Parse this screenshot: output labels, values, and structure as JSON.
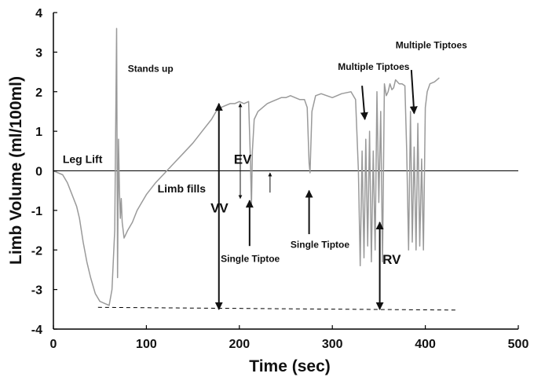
{
  "chart_data": {
    "type": "line",
    "title": "",
    "xlabel": "Time (sec)",
    "ylabel": "Limb Volume (ml/100ml)",
    "xlim": [
      0,
      500
    ],
    "ylim": [
      -4,
      4
    ],
    "xticks": [
      0,
      100,
      200,
      300,
      400,
      500
    ],
    "yticks": [
      -4,
      -3,
      -2,
      -1,
      0,
      1,
      2,
      3,
      4
    ],
    "grid": false,
    "legend": "none",
    "colors": {
      "trace": "#9a9a9a",
      "axis": "#000000",
      "annotation": "#111111"
    },
    "reference_line": {
      "y": 0
    },
    "baseline": {
      "x": [
        48,
        435
      ],
      "y": [
        -3.45,
        -3.52
      ],
      "style": "dashed"
    },
    "series": [
      {
        "style": "solid",
        "x": [
          0,
          10,
          15,
          20,
          25,
          28,
          32,
          36,
          40,
          45,
          50,
          55,
          60,
          63,
          66,
          68,
          69,
          70,
          71,
          72,
          73,
          74,
          76,
          80,
          85,
          90,
          95,
          100,
          110,
          120,
          130,
          140,
          150,
          160,
          170,
          175,
          180,
          185,
          190,
          195,
          200,
          205,
          210,
          212,
          213,
          214,
          216,
          220,
          225,
          230,
          235,
          240,
          245,
          250,
          255,
          260,
          265,
          270,
          273,
          275,
          276,
          278,
          282,
          288,
          300,
          310,
          320,
          325,
          328,
          330,
          332,
          334,
          336,
          338,
          340,
          342,
          344,
          346,
          348,
          350,
          352,
          354,
          356,
          358,
          360,
          362,
          364,
          366,
          368,
          370,
          372,
          375,
          378,
          380,
          382,
          384,
          386,
          388,
          390,
          392,
          394,
          396,
          398,
          400,
          402,
          405,
          410,
          415
        ],
        "y": [
          0,
          -0.1,
          -0.3,
          -0.6,
          -0.9,
          -1.2,
          -1.8,
          -2.3,
          -2.7,
          -3.1,
          -3.3,
          -3.35,
          -3.4,
          -3.0,
          -1.5,
          3.6,
          -2.7,
          0.8,
          -0.5,
          -1.2,
          -0.7,
          -1.3,
          -1.7,
          -1.5,
          -1.3,
          -1.0,
          -0.8,
          -0.6,
          -0.3,
          -0.05,
          0.2,
          0.45,
          0.7,
          1.0,
          1.3,
          1.5,
          1.6,
          1.65,
          1.7,
          1.7,
          1.75,
          1.7,
          1.75,
          0.2,
          -0.9,
          0.5,
          1.3,
          1.5,
          1.6,
          1.7,
          1.75,
          1.8,
          1.85,
          1.85,
          1.9,
          1.85,
          1.8,
          1.8,
          1.6,
          0.2,
          -0.05,
          1.5,
          1.9,
          1.95,
          1.85,
          1.95,
          2.0,
          1.8,
          0.0,
          -2.4,
          0.5,
          -2.2,
          0.8,
          -1.9,
          1.0,
          -2.3,
          0.5,
          -2.0,
          2.0,
          -0.8,
          1.5,
          -2.3,
          2.2,
          1.9,
          2.0,
          2.2,
          2.05,
          2.1,
          2.3,
          2.25,
          2.2,
          2.2,
          2.15,
          0.5,
          -2.0,
          1.5,
          -1.8,
          0.6,
          -2.0,
          1.2,
          -1.9,
          0.3,
          -2.0,
          1.6,
          2.0,
          2.2,
          2.25,
          2.35
        ]
      }
    ],
    "annotations": [
      {
        "text": "Stands up",
        "x": 80,
        "y": 2.5
      },
      {
        "text": "Leg Lift",
        "x": 10,
        "y": 0.2
      },
      {
        "text": "Limb fills",
        "x": 112,
        "y": -0.55
      },
      {
        "text": "VV",
        "x": 169,
        "y": -1.05
      },
      {
        "text": "EV",
        "x": 194,
        "y": 0.18
      },
      {
        "text": "Single Tiptoe",
        "x": 180,
        "y": -2.3
      },
      {
        "text": "Single Tiptoe",
        "x": 255,
        "y": -1.95
      },
      {
        "text": "RV",
        "x": 354,
        "y": -2.35
      },
      {
        "text": "Multiple Tiptoes",
        "x": 306,
        "y": 2.55
      },
      {
        "text": "Multiple Tiptoes",
        "x": 368,
        "y": 3.1
      }
    ],
    "arrows": [
      {
        "x": [
          178,
          178
        ],
        "y": [
          -3.5,
          1.7
        ],
        "heads": "both",
        "weight": "bold"
      },
      {
        "x": [
          201,
          201
        ],
        "y": [
          -0.7,
          1.7
        ],
        "heads": "both",
        "weight": "thin"
      },
      {
        "x": [
          211,
          211
        ],
        "y": [
          -1.9,
          -0.75
        ],
        "heads": "end",
        "weight": "bold"
      },
      {
        "x": [
          233,
          233
        ],
        "y": [
          -0.55,
          -0.05
        ],
        "heads": "end",
        "weight": "thin"
      },
      {
        "x": [
          275,
          275
        ],
        "y": [
          -1.6,
          -0.5
        ],
        "heads": "end",
        "weight": "bold"
      },
      {
        "x": [
          351,
          351
        ],
        "y": [
          -3.5,
          -1.3
        ],
        "heads": "both",
        "weight": "bold"
      },
      {
        "x": [
          332,
          335
        ],
        "y": [
          2.15,
          1.3
        ],
        "heads": "end",
        "weight": "bold"
      },
      {
        "x": [
          385,
          388
        ],
        "y": [
          2.55,
          1.45
        ],
        "heads": "end",
        "weight": "bold"
      }
    ]
  }
}
